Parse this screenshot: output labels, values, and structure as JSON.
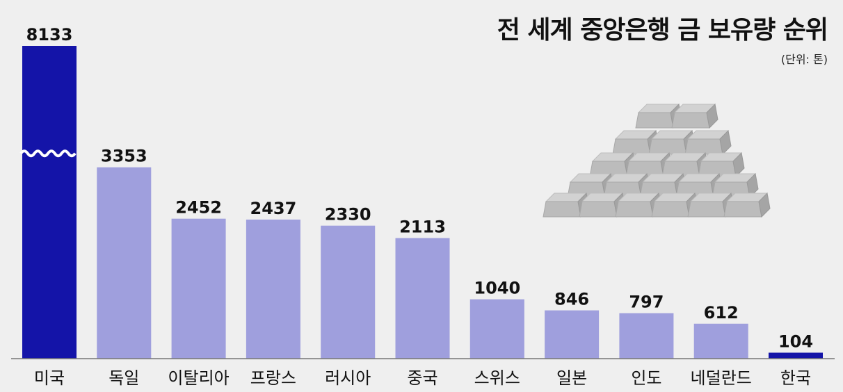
{
  "chart_data": {
    "type": "bar",
    "title": "전 세계 중앙은행 금 보유량 순위",
    "unit": "(단위: 톤)",
    "categories": [
      "미국",
      "독일",
      "이탈리아",
      "프랑스",
      "러시아",
      "중국",
      "스위스",
      "일본",
      "인도",
      "네덜란드",
      "한국"
    ],
    "values": [
      8133,
      3353,
      2452,
      2437,
      2330,
      2113,
      1040,
      846,
      797,
      612,
      104
    ],
    "labels": [
      "8133",
      "3353",
      "2452",
      "2437",
      "2330",
      "2113",
      "1040",
      "846",
      "797",
      "612",
      "104"
    ],
    "ylim": [
      0,
      3800
    ],
    "axis_break": {
      "category": "미국"
    },
    "colors": {
      "highlight": "#1414a8",
      "normal": "#9f9fdd",
      "axis": "#777777",
      "gold_bar_light": "#d2d2d2",
      "gold_bar_dark": "#a5a5a5"
    },
    "highlight_categories": [
      "미국",
      "한국"
    ],
    "decoration": "stacked-gold-bars-image"
  }
}
